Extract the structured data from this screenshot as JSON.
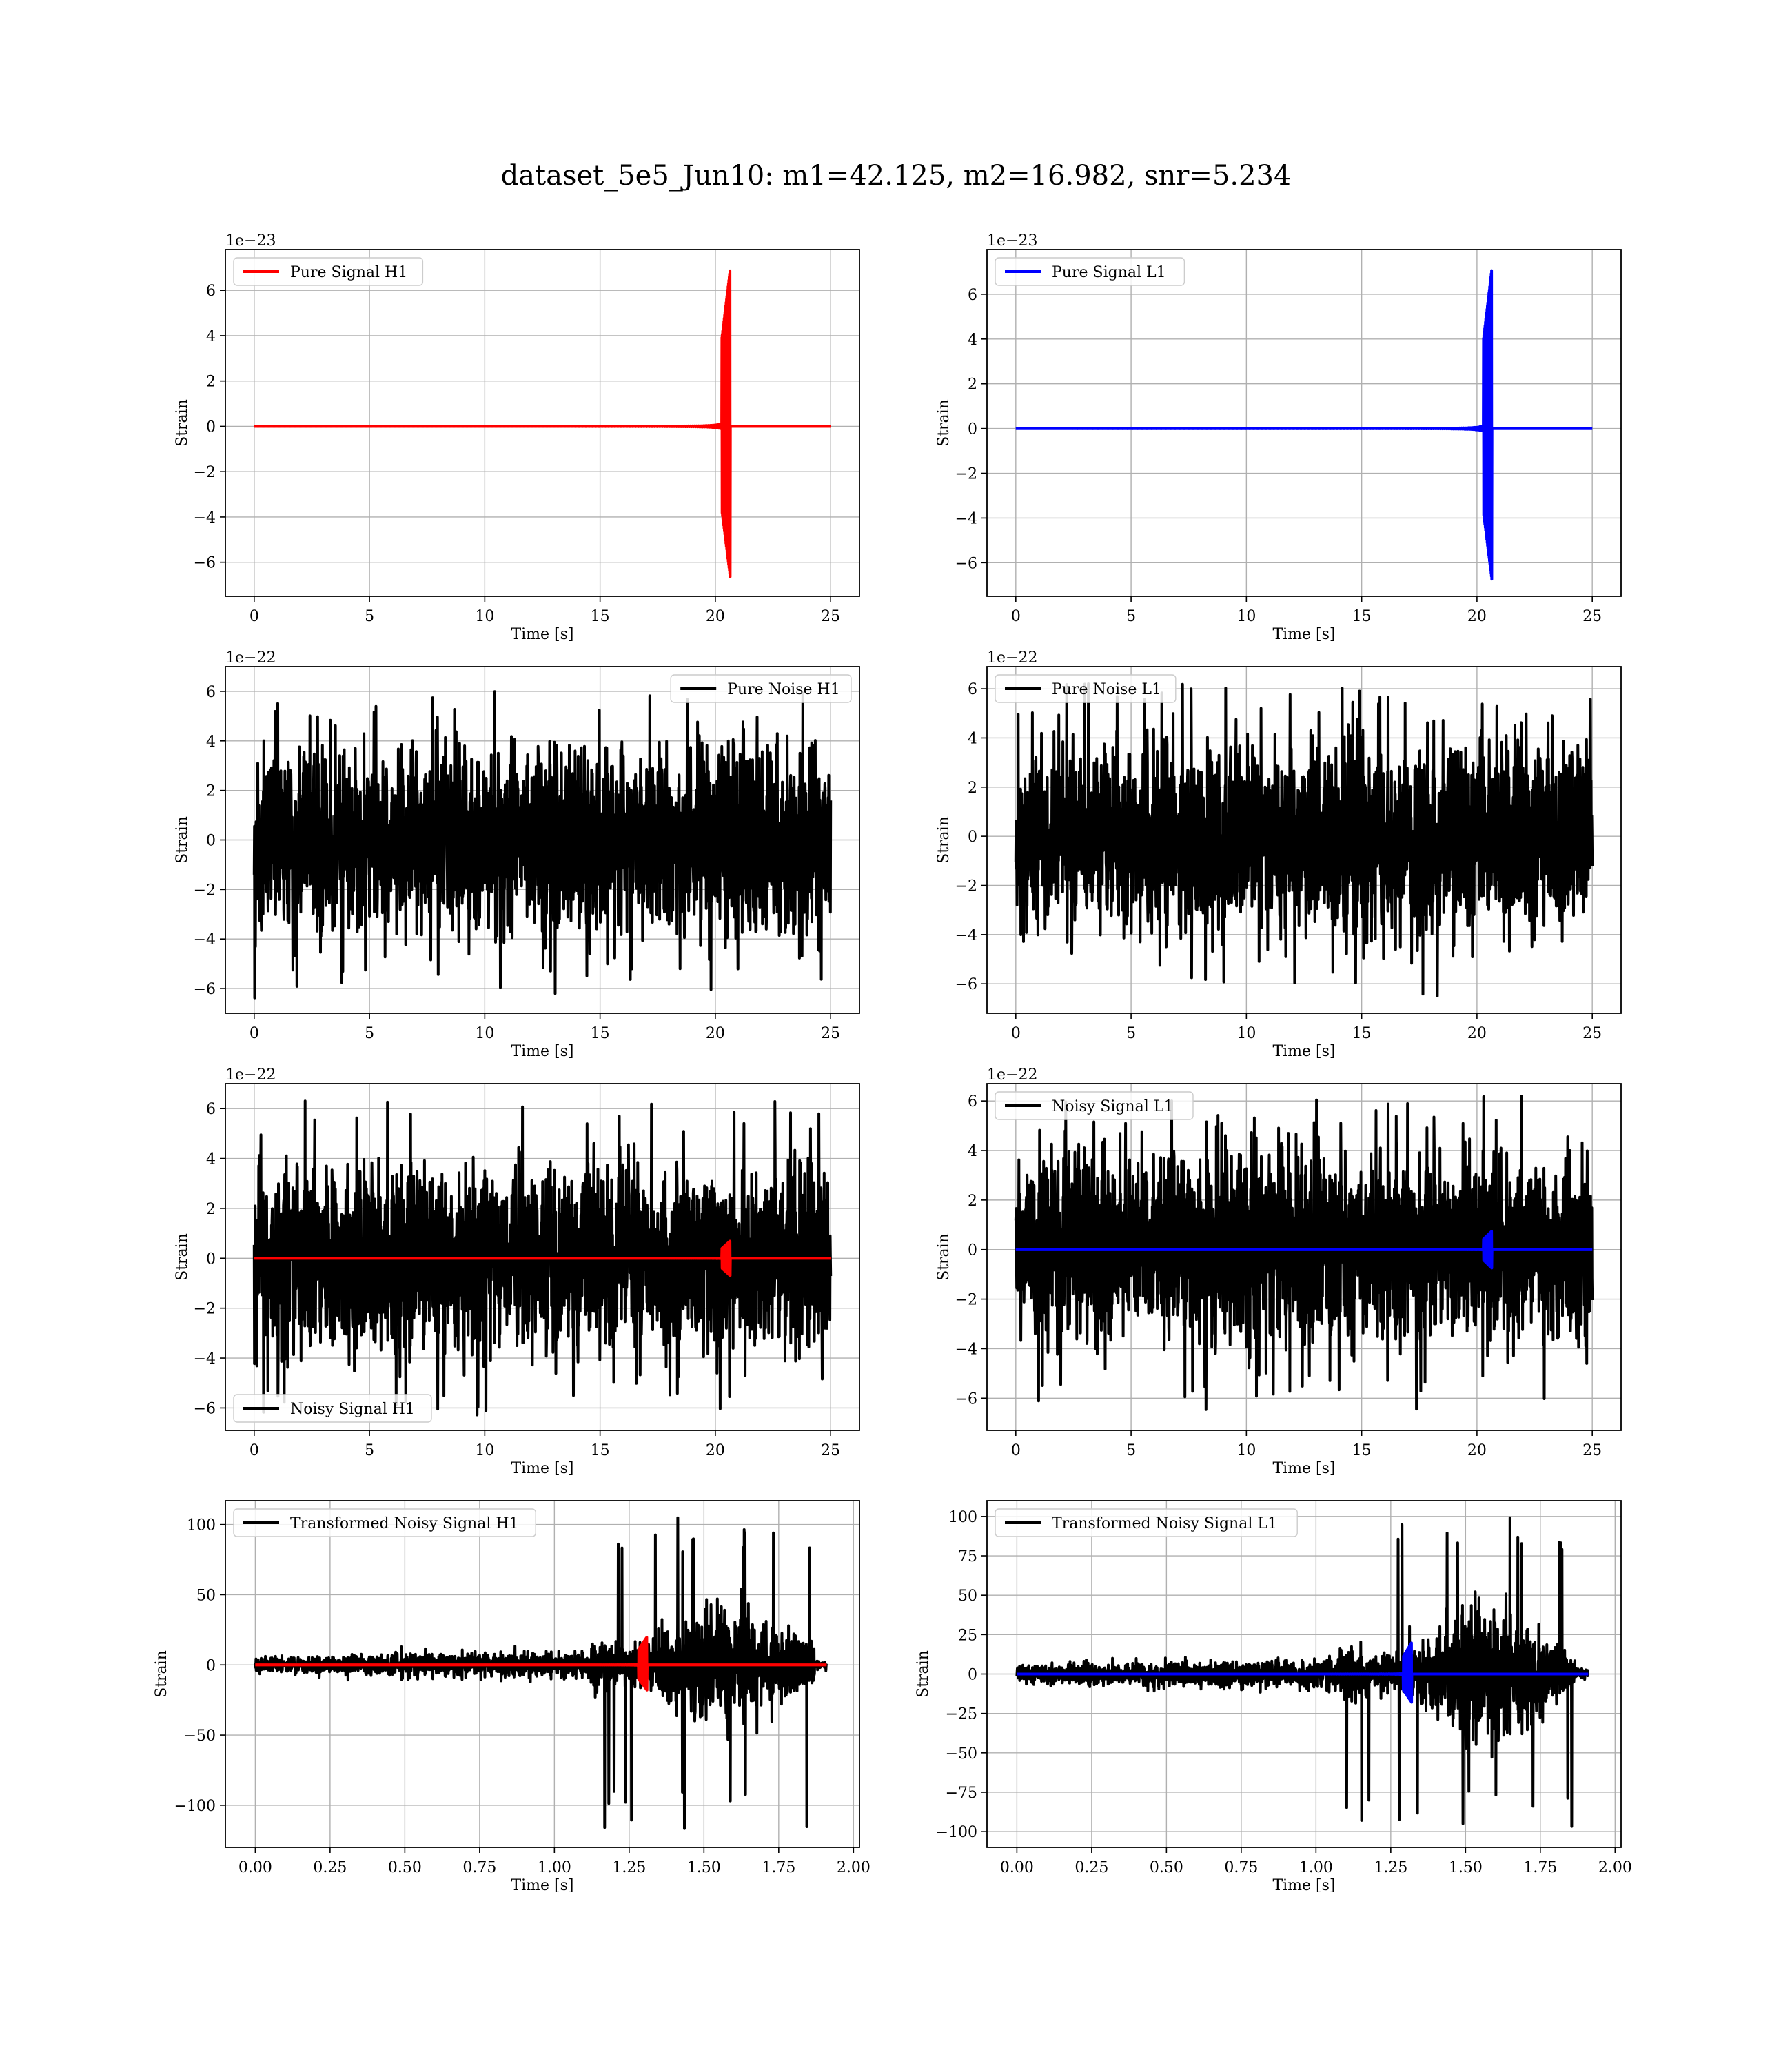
{
  "figure": {
    "title": "dataset_5e5_Jun10: m1=42.125, m2=16.982, snr=5.234"
  },
  "chart_data": [
    {
      "id": "pure-signal-h1",
      "type": "line",
      "xlabel": "Time [s]",
      "ylabel": "Strain",
      "offset_text": "1e−23",
      "xlim": [
        -1.25,
        26.25
      ],
      "ylim": [
        -7.5,
        7.8
      ],
      "xticks": [
        0,
        5,
        10,
        15,
        20,
        25
      ],
      "xtick_labels": [
        "0",
        "5",
        "10",
        "15",
        "20",
        "25"
      ],
      "yticks": [
        -6,
        -4,
        -2,
        0,
        2,
        4,
        6
      ],
      "ytick_labels": [
        "−6",
        "−4",
        "−2",
        "0",
        "2",
        "4",
        "6"
      ],
      "grid": true,
      "legend": {
        "position": "top-left",
        "entries": [
          {
            "label": "Pure Signal H1",
            "color": "#ff0000"
          }
        ]
      },
      "series": [
        {
          "name": "Pure Signal H1",
          "color": "#ff0000",
          "kind": "chirp",
          "t_start": 0,
          "t_end": 25,
          "merger_time": 20.65,
          "peak_high": 7.0,
          "peak_low": -6.7
        }
      ]
    },
    {
      "id": "pure-signal-l1",
      "type": "line",
      "xlabel": "Time [s]",
      "ylabel": "Strain",
      "offset_text": "1e−23",
      "xlim": [
        -1.25,
        26.25
      ],
      "ylim": [
        -7.5,
        8.0
      ],
      "xticks": [
        0,
        5,
        10,
        15,
        20,
        25
      ],
      "xtick_labels": [
        "0",
        "5",
        "10",
        "15",
        "20",
        "25"
      ],
      "yticks": [
        -6,
        -4,
        -2,
        0,
        2,
        4,
        6
      ],
      "ytick_labels": [
        "−6",
        "−4",
        "−2",
        "0",
        "2",
        "4",
        "6"
      ],
      "grid": true,
      "legend": {
        "position": "top-left",
        "entries": [
          {
            "label": "Pure Signal L1",
            "color": "#0000ff"
          }
        ]
      },
      "series": [
        {
          "name": "Pure Signal L1",
          "color": "#0000ff",
          "kind": "chirp",
          "t_start": 0,
          "t_end": 25,
          "merger_time": 20.65,
          "peak_high": 7.2,
          "peak_low": -6.8
        }
      ]
    },
    {
      "id": "pure-noise-h1",
      "type": "line",
      "xlabel": "Time [s]",
      "ylabel": "Strain",
      "offset_text": "1e−22",
      "xlim": [
        -1.25,
        26.25
      ],
      "ylim": [
        -7.0,
        7.0
      ],
      "xticks": [
        0,
        5,
        10,
        15,
        20,
        25
      ],
      "xtick_labels": [
        "0",
        "5",
        "10",
        "15",
        "20",
        "25"
      ],
      "yticks": [
        -6,
        -4,
        -2,
        0,
        2,
        4,
        6
      ],
      "ytick_labels": [
        "−6",
        "−4",
        "−2",
        "0",
        "2",
        "4",
        "6"
      ],
      "grid": true,
      "legend": {
        "position": "top-right",
        "entries": [
          {
            "label": "Pure Noise H1",
            "color": "#000000"
          }
        ]
      },
      "series": [
        {
          "name": "Pure Noise H1",
          "color": "#000000",
          "kind": "noise",
          "t_start": 0,
          "t_end": 25,
          "band_low": -3.5,
          "band_high": 3.4,
          "max": 6.0,
          "min": -6.4
        }
      ]
    },
    {
      "id": "pure-noise-l1",
      "type": "line",
      "xlabel": "Time [s]",
      "ylabel": "Strain",
      "offset_text": "1e−22",
      "xlim": [
        -1.25,
        26.25
      ],
      "ylim": [
        -7.2,
        6.9
      ],
      "xticks": [
        0,
        5,
        10,
        15,
        20,
        25
      ],
      "xtick_labels": [
        "0",
        "5",
        "10",
        "15",
        "20",
        "25"
      ],
      "yticks": [
        -6,
        -4,
        -2,
        0,
        2,
        4,
        6
      ],
      "ytick_labels": [
        "−6",
        "−4",
        "−2",
        "0",
        "2",
        "4",
        "6"
      ],
      "grid": true,
      "legend": {
        "position": "top-left",
        "entries": [
          {
            "label": "Pure Noise L1",
            "color": "#000000"
          }
        ]
      },
      "series": [
        {
          "name": "Pure Noise L1",
          "color": "#000000",
          "kind": "noise",
          "t_start": 0,
          "t_end": 25,
          "band_low": -3.5,
          "band_high": 3.5,
          "max": 6.2,
          "min": -6.5
        }
      ]
    },
    {
      "id": "noisy-signal-h1",
      "type": "line",
      "xlabel": "Time [s]",
      "ylabel": "Strain",
      "offset_text": "1e−22",
      "xlim": [
        -1.25,
        26.25
      ],
      "ylim": [
        -6.9,
        7.0
      ],
      "xticks": [
        0,
        5,
        10,
        15,
        20,
        25
      ],
      "xtick_labels": [
        "0",
        "5",
        "10",
        "15",
        "20",
        "25"
      ],
      "yticks": [
        -6,
        -4,
        -2,
        0,
        2,
        4,
        6
      ],
      "ytick_labels": [
        "−6",
        "−4",
        "−2",
        "0",
        "2",
        "4",
        "6"
      ],
      "grid": true,
      "legend": {
        "position": "bottom-left",
        "entries": [
          {
            "label": "Noisy Signal H1",
            "color": "#000000"
          }
        ]
      },
      "series": [
        {
          "name": "Noisy Signal H1",
          "color": "#000000",
          "kind": "noise",
          "t_start": 0,
          "t_end": 25,
          "band_low": -3.5,
          "band_high": 3.4,
          "max": 6.3,
          "min": -6.3
        },
        {
          "name": "",
          "color": "#ff0000",
          "kind": "chirp",
          "t_start": 0,
          "t_end": 25,
          "merger_time": 20.65,
          "peak_high": 0.7,
          "peak_low": -0.7
        }
      ]
    },
    {
      "id": "noisy-signal-l1",
      "type": "line",
      "xlabel": "Time [s]",
      "ylabel": "Strain",
      "offset_text": "1e−22",
      "xlim": [
        -1.25,
        26.25
      ],
      "ylim": [
        -7.3,
        6.7
      ],
      "xticks": [
        0,
        5,
        10,
        15,
        20,
        25
      ],
      "xtick_labels": [
        "0",
        "5",
        "10",
        "15",
        "20",
        "25"
      ],
      "yticks": [
        -6,
        -4,
        -2,
        0,
        2,
        4,
        6
      ],
      "ytick_labels": [
        "−6",
        "−4",
        "−2",
        "0",
        "2",
        "4",
        "6"
      ],
      "grid": true,
      "legend": {
        "position": "top-left",
        "entries": [
          {
            "label": "Noisy Signal L1",
            "color": "#000000"
          }
        ]
      },
      "series": [
        {
          "name": "Noisy Signal L1",
          "color": "#000000",
          "kind": "noise",
          "t_start": 0,
          "t_end": 25,
          "band_low": -3.5,
          "band_high": 3.5,
          "max": 6.2,
          "min": -6.5
        },
        {
          "name": "",
          "color": "#0000ff",
          "kind": "chirp",
          "t_start": 0,
          "t_end": 25,
          "merger_time": 20.65,
          "peak_high": 0.75,
          "peak_low": -0.75
        }
      ]
    },
    {
      "id": "transformed-noisy-signal-h1",
      "type": "line",
      "xlabel": "Time [s]",
      "ylabel": "Strain",
      "offset_text": "",
      "xlim": [
        -0.1,
        2.02
      ],
      "ylim": [
        -130,
        117
      ],
      "xticks": [
        0,
        0.25,
        0.5,
        0.75,
        1.0,
        1.25,
        1.5,
        1.75,
        2.0
      ],
      "xtick_labels": [
        "0.00",
        "0.25",
        "0.50",
        "0.75",
        "1.00",
        "1.25",
        "1.50",
        "1.75",
        "2.00"
      ],
      "yticks": [
        -100,
        -50,
        0,
        50,
        100
      ],
      "ytick_labels": [
        "−100",
        "−50",
        "0",
        "50",
        "100"
      ],
      "grid": true,
      "legend": {
        "position": "top-left",
        "entries": [
          {
            "label": "Transformed Noisy Signal H1",
            "color": "#000000"
          }
        ]
      },
      "series": [
        {
          "name": "Transformed Noisy Signal H1",
          "color": "#000000",
          "kind": "transformed_noise",
          "t_start": 0,
          "t_end": 1.91,
          "step_time": 1.12,
          "end_time": 1.87,
          "early_amp": 8,
          "late_amp": 55,
          "max": 105,
          "min": -120
        },
        {
          "name": "",
          "color": "#ff0000",
          "kind": "chirp",
          "t_start": 0,
          "t_end": 1.91,
          "merger_time": 1.31,
          "peak_high": 20,
          "peak_low": -18
        }
      ]
    },
    {
      "id": "transformed-noisy-signal-l1",
      "type": "line",
      "xlabel": "Time [s]",
      "ylabel": "Strain",
      "offset_text": "",
      "xlim": [
        -0.1,
        2.02
      ],
      "ylim": [
        -110,
        110
      ],
      "xticks": [
        0,
        0.25,
        0.5,
        0.75,
        1.0,
        1.25,
        1.5,
        1.75,
        2.0
      ],
      "xtick_labels": [
        "0.00",
        "0.25",
        "0.50",
        "0.75",
        "1.00",
        "1.25",
        "1.50",
        "1.75",
        "2.00"
      ],
      "yticks": [
        -100,
        -75,
        -50,
        -25,
        0,
        25,
        50,
        75,
        100
      ],
      "ytick_labels": [
        "−100",
        "−75",
        "−50",
        "−25",
        "0",
        "25",
        "50",
        "75",
        "100"
      ],
      "grid": true,
      "legend": {
        "position": "top-left",
        "entries": [
          {
            "label": "Transformed Noisy Signal L1",
            "color": "#000000"
          }
        ]
      },
      "series": [
        {
          "name": "Transformed Noisy Signal L1",
          "color": "#000000",
          "kind": "transformed_noise",
          "t_start": 0,
          "t_end": 1.91,
          "step_time": 1.08,
          "end_time": 1.87,
          "early_amp": 8,
          "late_amp": 50,
          "max": 100,
          "min": -97
        },
        {
          "name": "",
          "color": "#0000ff",
          "kind": "chirp",
          "t_start": 0,
          "t_end": 1.91,
          "merger_time": 1.32,
          "peak_high": 20,
          "peak_low": -18
        }
      ]
    }
  ]
}
